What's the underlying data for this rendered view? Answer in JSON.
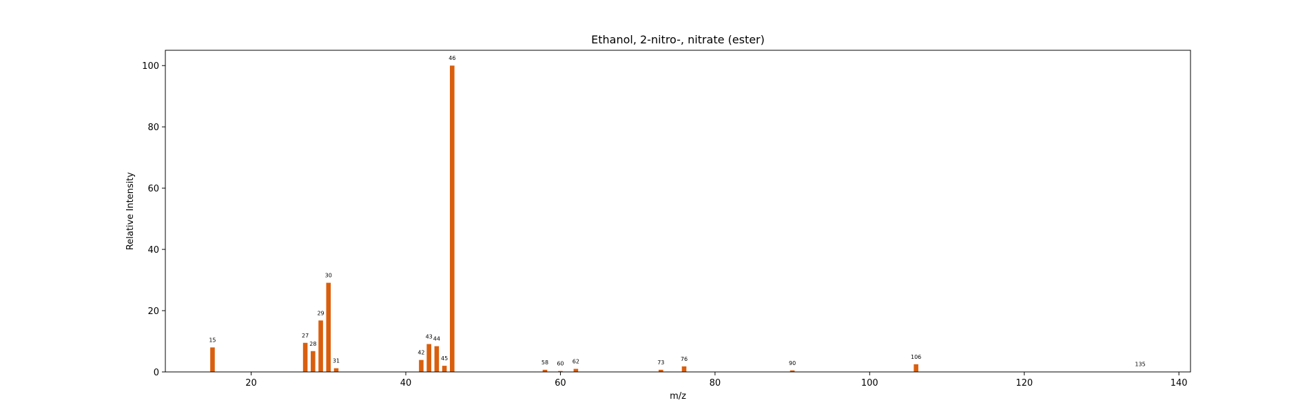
{
  "chart_data": {
    "type": "bar",
    "title": "Ethanol, 2-nitro-, nitrate (ester)",
    "xlabel": "m/z",
    "ylabel": "Relative Intensity",
    "xlim": [
      8.9,
      141.5
    ],
    "ylim": [
      0,
      105
    ],
    "xticks": [
      20,
      40,
      60,
      80,
      100,
      120,
      140
    ],
    "yticks": [
      0,
      20,
      40,
      60,
      80,
      100
    ],
    "bar_color": "#d95f0e",
    "grid": false,
    "peaks": [
      {
        "mz": 15,
        "intensity": 8.0,
        "label": "15"
      },
      {
        "mz": 27,
        "intensity": 9.5,
        "label": "27"
      },
      {
        "mz": 28,
        "intensity": 6.8,
        "label": "28"
      },
      {
        "mz": 29,
        "intensity": 16.8,
        "label": "29"
      },
      {
        "mz": 30,
        "intensity": 29.1,
        "label": "30"
      },
      {
        "mz": 31,
        "intensity": 1.2,
        "label": "31"
      },
      {
        "mz": 42,
        "intensity": 3.9,
        "label": "42"
      },
      {
        "mz": 43,
        "intensity": 9.1,
        "label": "43"
      },
      {
        "mz": 44,
        "intensity": 8.4,
        "label": "44"
      },
      {
        "mz": 45,
        "intensity": 2.0,
        "label": "45"
      },
      {
        "mz": 46,
        "intensity": 100.0,
        "label": "46"
      },
      {
        "mz": 58,
        "intensity": 0.7,
        "label": "58"
      },
      {
        "mz": 60,
        "intensity": 0.3,
        "label": "60"
      },
      {
        "mz": 62,
        "intensity": 1.0,
        "label": "62"
      },
      {
        "mz": 73,
        "intensity": 0.7,
        "label": "73"
      },
      {
        "mz": 76,
        "intensity": 1.8,
        "label": "76"
      },
      {
        "mz": 90,
        "intensity": 0.5,
        "label": "90"
      },
      {
        "mz": 106,
        "intensity": 2.5,
        "label": "106"
      },
      {
        "mz": 135,
        "intensity": 0.1,
        "label": "135"
      }
    ]
  }
}
